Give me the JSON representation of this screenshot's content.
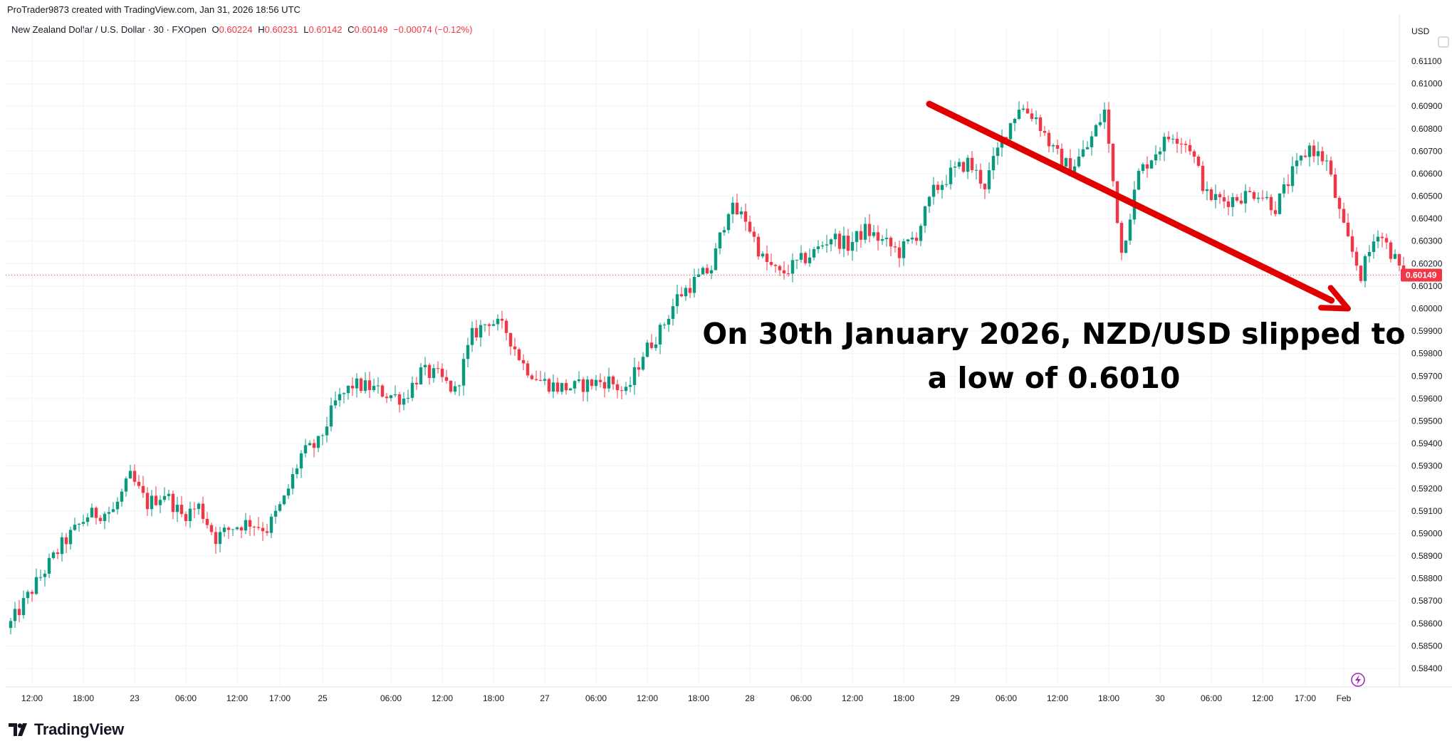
{
  "header": {
    "created_by": "ProTrader9873 created with TradingView.com, Jan 31, 2026 18:56 UTC"
  },
  "legend": {
    "symbol": "New Zealand Dollar / U.S. Dollar · 30 · FXOpen",
    "o_label": "O",
    "o_value": "0.60224",
    "h_label": "H",
    "h_value": "0.60231",
    "l_label": "L",
    "l_value": "0.60142",
    "c_label": "C",
    "c_value": "0.60149",
    "change": "−0.00074 (−0.12%)"
  },
  "annotation": {
    "line1": "On 30th January 2026, NZD/USD slipped to",
    "line2": "a low of 0.6010"
  },
  "footer": {
    "brand": "TradingView"
  },
  "colors": {
    "up": "#089981",
    "down": "#f23645",
    "arrow": "#e00000",
    "grid": "#f0f3fa",
    "axis_text": "#131722"
  },
  "chart_data": {
    "type": "candlestick",
    "currency_label": "USD",
    "last_price_label": "0.60149",
    "last_price": 0.60149,
    "ylim": [
      0.5835,
      0.6115
    ],
    "y_ticks": [
      "0.61100",
      "0.61000",
      "0.60900",
      "0.60800",
      "0.60700",
      "0.60600",
      "0.60500",
      "0.60400",
      "0.60300",
      "0.60200",
      "0.60100",
      "0.60000",
      "0.59900",
      "0.59800",
      "0.59700",
      "0.59600",
      "0.59500",
      "0.59400",
      "0.59300",
      "0.59200",
      "0.59100",
      "0.59000",
      "0.58900",
      "0.58800",
      "0.58700",
      "0.58600",
      "0.58500",
      "0.58400"
    ],
    "x_ticks": [
      {
        "label": "12:00",
        "bar": 5
      },
      {
        "label": "18:00",
        "bar": 17
      },
      {
        "label": "23",
        "bar": 29
      },
      {
        "label": "06:00",
        "bar": 41
      },
      {
        "label": "12:00",
        "bar": 53
      },
      {
        "label": "17:00",
        "bar": 63
      },
      {
        "label": "25",
        "bar": 73
      },
      {
        "label": "06:00",
        "bar": 89
      },
      {
        "label": "12:00",
        "bar": 101
      },
      {
        "label": "18:00",
        "bar": 113
      },
      {
        "label": "27",
        "bar": 125
      },
      {
        "label": "06:00",
        "bar": 137
      },
      {
        "label": "12:00",
        "bar": 149
      },
      {
        "label": "18:00",
        "bar": 161
      },
      {
        "label": "28",
        "bar": 173
      },
      {
        "label": "06:00",
        "bar": 185
      },
      {
        "label": "12:00",
        "bar": 197
      },
      {
        "label": "18:00",
        "bar": 209
      },
      {
        "label": "29",
        "bar": 221
      },
      {
        "label": "06:00",
        "bar": 233
      },
      {
        "label": "12:00",
        "bar": 245
      },
      {
        "label": "18:00",
        "bar": 257
      },
      {
        "label": "30",
        "bar": 269
      },
      {
        "label": "06:00",
        "bar": 281
      },
      {
        "label": "12:00",
        "bar": 293
      },
      {
        "label": "17:00",
        "bar": 303
      },
      {
        "label": "Feb",
        "bar": 312
      }
    ],
    "bar_count": 313,
    "path_points": [
      [
        0,
        0.586
      ],
      [
        6,
        0.5878
      ],
      [
        12,
        0.5895
      ],
      [
        18,
        0.5908
      ],
      [
        24,
        0.591
      ],
      [
        28,
        0.5925
      ],
      [
        32,
        0.5913
      ],
      [
        36,
        0.5918
      ],
      [
        40,
        0.5908
      ],
      [
        44,
        0.5912
      ],
      [
        48,
        0.5898
      ],
      [
        52,
        0.5903
      ],
      [
        56,
        0.5905
      ],
      [
        60,
        0.5902
      ],
      [
        64,
        0.5915
      ],
      [
        68,
        0.5935
      ],
      [
        72,
        0.594
      ],
      [
        76,
        0.5958
      ],
      [
        80,
        0.5966
      ],
      [
        84,
        0.5965
      ],
      [
        88,
        0.5962
      ],
      [
        92,
        0.596
      ],
      [
        96,
        0.5972
      ],
      [
        100,
        0.597
      ],
      [
        104,
        0.5963
      ],
      [
        108,
        0.5988
      ],
      [
        112,
        0.5995
      ],
      [
        116,
        0.599
      ],
      [
        120,
        0.5975
      ],
      [
        124,
        0.5968
      ],
      [
        128,
        0.5965
      ],
      [
        132,
        0.5965
      ],
      [
        136,
        0.5967
      ],
      [
        140,
        0.5968
      ],
      [
        144,
        0.5962
      ],
      [
        148,
        0.598
      ],
      [
        152,
        0.599
      ],
      [
        156,
        0.6005
      ],
      [
        160,
        0.6012
      ],
      [
        164,
        0.6018
      ],
      [
        168,
        0.6045
      ],
      [
        172,
        0.604
      ],
      [
        176,
        0.6022
      ],
      [
        180,
        0.6015
      ],
      [
        184,
        0.602
      ],
      [
        188,
        0.6025
      ],
      [
        192,
        0.6032
      ],
      [
        196,
        0.6028
      ],
      [
        200,
        0.6035
      ],
      [
        204,
        0.603
      ],
      [
        208,
        0.6025
      ],
      [
        212,
        0.6033
      ],
      [
        216,
        0.6052
      ],
      [
        220,
        0.606
      ],
      [
        224,
        0.6065
      ],
      [
        228,
        0.6055
      ],
      [
        232,
        0.6075
      ],
      [
        236,
        0.609
      ],
      [
        240,
        0.6085
      ],
      [
        244,
        0.607
      ],
      [
        248,
        0.6062
      ],
      [
        252,
        0.6072
      ],
      [
        256,
        0.6088
      ],
      [
        260,
        0.6025
      ],
      [
        264,
        0.606
      ],
      [
        268,
        0.607
      ],
      [
        272,
        0.6078
      ],
      [
        276,
        0.6072
      ],
      [
        280,
        0.605
      ],
      [
        284,
        0.6048
      ],
      [
        288,
        0.605
      ],
      [
        292,
        0.6052
      ],
      [
        296,
        0.6045
      ],
      [
        300,
        0.606
      ],
      [
        304,
        0.6072
      ],
      [
        308,
        0.6065
      ],
      [
        312,
        0.6035
      ],
      [
        316,
        0.6015
      ],
      [
        320,
        0.6035
      ],
      [
        324,
        0.6022
      ],
      [
        326,
        0.60149
      ]
    ],
    "arrow": {
      "from": [
        215,
        0.6091
      ],
      "to": [
        313,
        0.6
      ]
    }
  }
}
